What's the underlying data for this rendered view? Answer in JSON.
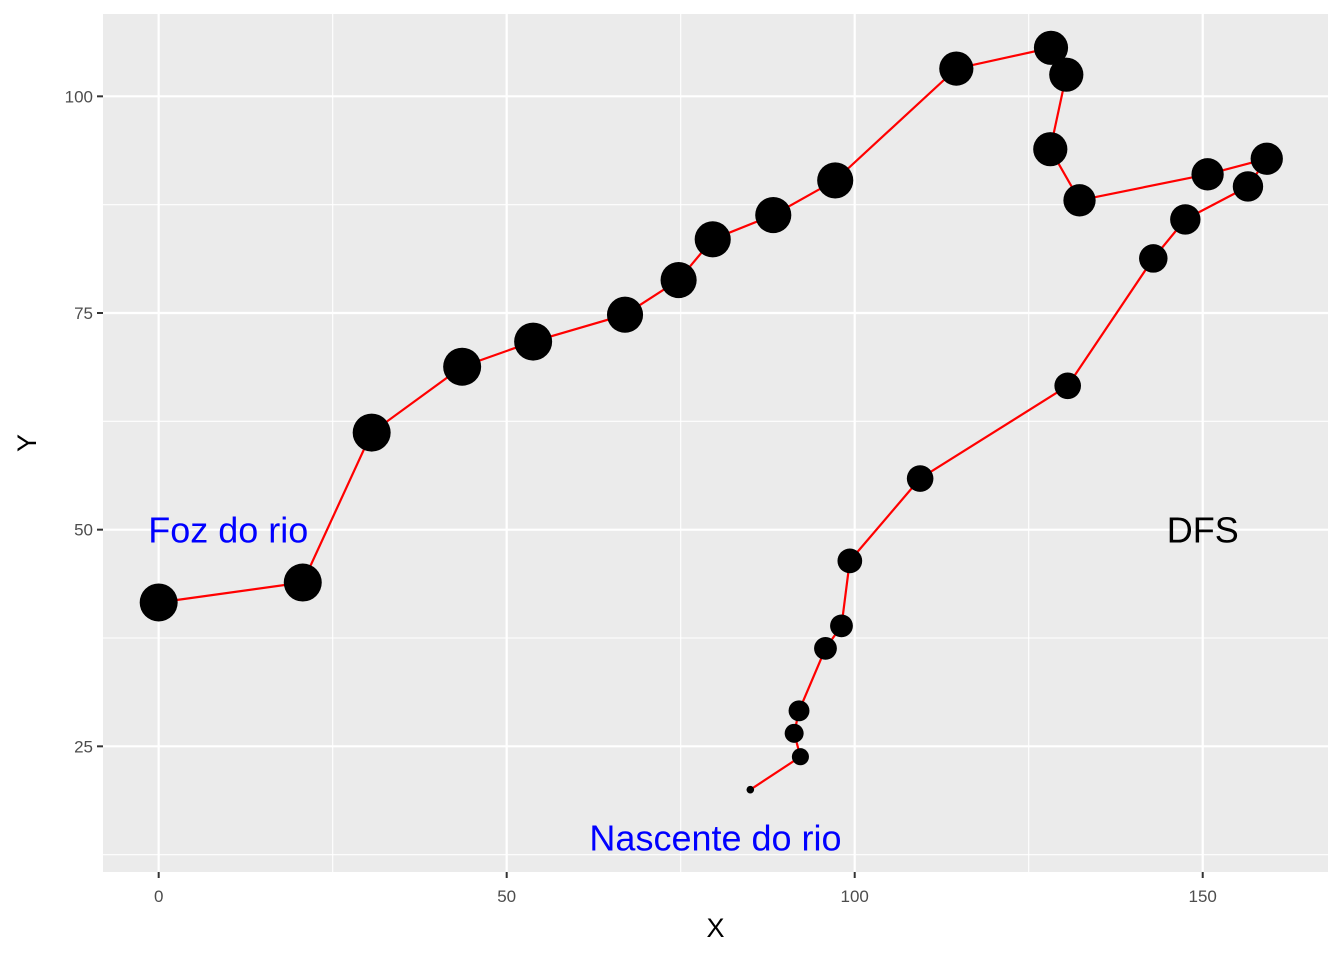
{
  "chart_data": {
    "type": "scatter",
    "xlabel": "X",
    "ylabel": "Y",
    "xlim": [
      -8,
      168
    ],
    "ylim": [
      10.5,
      109.5
    ],
    "x_ticks": [
      0,
      50,
      100,
      150
    ],
    "y_ticks": [
      25,
      50,
      75,
      100
    ],
    "x_tick_labels": [
      "0",
      "50",
      "100",
      "150"
    ],
    "y_tick_labels": [
      "25",
      "50",
      "75",
      "100"
    ],
    "grid": true,
    "legend": "none",
    "line_color": "#ff0000",
    "point_color": "#000000",
    "panel_background": "#ebebeb",
    "points": [
      {
        "x": 0.0,
        "y": 41.6,
        "size": 10
      },
      {
        "x": 20.7,
        "y": 43.9,
        "size": 10
      },
      {
        "x": 30.6,
        "y": 61.2,
        "size": 10
      },
      {
        "x": 43.6,
        "y": 68.8,
        "size": 10
      },
      {
        "x": 53.8,
        "y": 71.7,
        "size": 10
      },
      {
        "x": 67.0,
        "y": 74.8,
        "size": 9.5
      },
      {
        "x": 74.7,
        "y": 78.8,
        "size": 9.5
      },
      {
        "x": 79.6,
        "y": 83.5,
        "size": 9.5
      },
      {
        "x": 88.3,
        "y": 86.3,
        "size": 9.5
      },
      {
        "x": 97.2,
        "y": 90.3,
        "size": 9.5
      },
      {
        "x": 114.6,
        "y": 103.2,
        "size": 9
      },
      {
        "x": 128.2,
        "y": 105.6,
        "size": 9
      },
      {
        "x": 130.4,
        "y": 102.5,
        "size": 9
      },
      {
        "x": 128.1,
        "y": 93.9,
        "size": 9
      },
      {
        "x": 132.3,
        "y": 88.0,
        "size": 8.5
      },
      {
        "x": 150.7,
        "y": 91.0,
        "size": 8.5
      },
      {
        "x": 159.2,
        "y": 92.8,
        "size": 8.5
      },
      {
        "x": 156.5,
        "y": 89.6,
        "size": 8
      },
      {
        "x": 147.5,
        "y": 85.8,
        "size": 8
      },
      {
        "x": 142.9,
        "y": 81.3,
        "size": 7.5
      },
      {
        "x": 130.6,
        "y": 66.6,
        "size": 7
      },
      {
        "x": 109.4,
        "y": 55.9,
        "size": 7
      },
      {
        "x": 99.3,
        "y": 46.4,
        "size": 6.5
      },
      {
        "x": 98.1,
        "y": 38.9,
        "size": 6
      },
      {
        "x": 95.8,
        "y": 36.3,
        "size": 6
      },
      {
        "x": 92.0,
        "y": 29.1,
        "size": 5.5
      },
      {
        "x": 91.3,
        "y": 26.5,
        "size": 5
      },
      {
        "x": 92.2,
        "y": 23.8,
        "size": 4.5
      },
      {
        "x": 85.0,
        "y": 20.0,
        "size": 2
      }
    ],
    "annotations": [
      {
        "text": "Foz do rio",
        "x": 10,
        "y": 50,
        "color": "#0000ff"
      },
      {
        "text": "Nascente do rio",
        "x": 80,
        "y": 14.5,
        "color": "#0000ff"
      },
      {
        "text": "DFS",
        "x": 150,
        "y": 50,
        "color": "#000000"
      }
    ]
  }
}
